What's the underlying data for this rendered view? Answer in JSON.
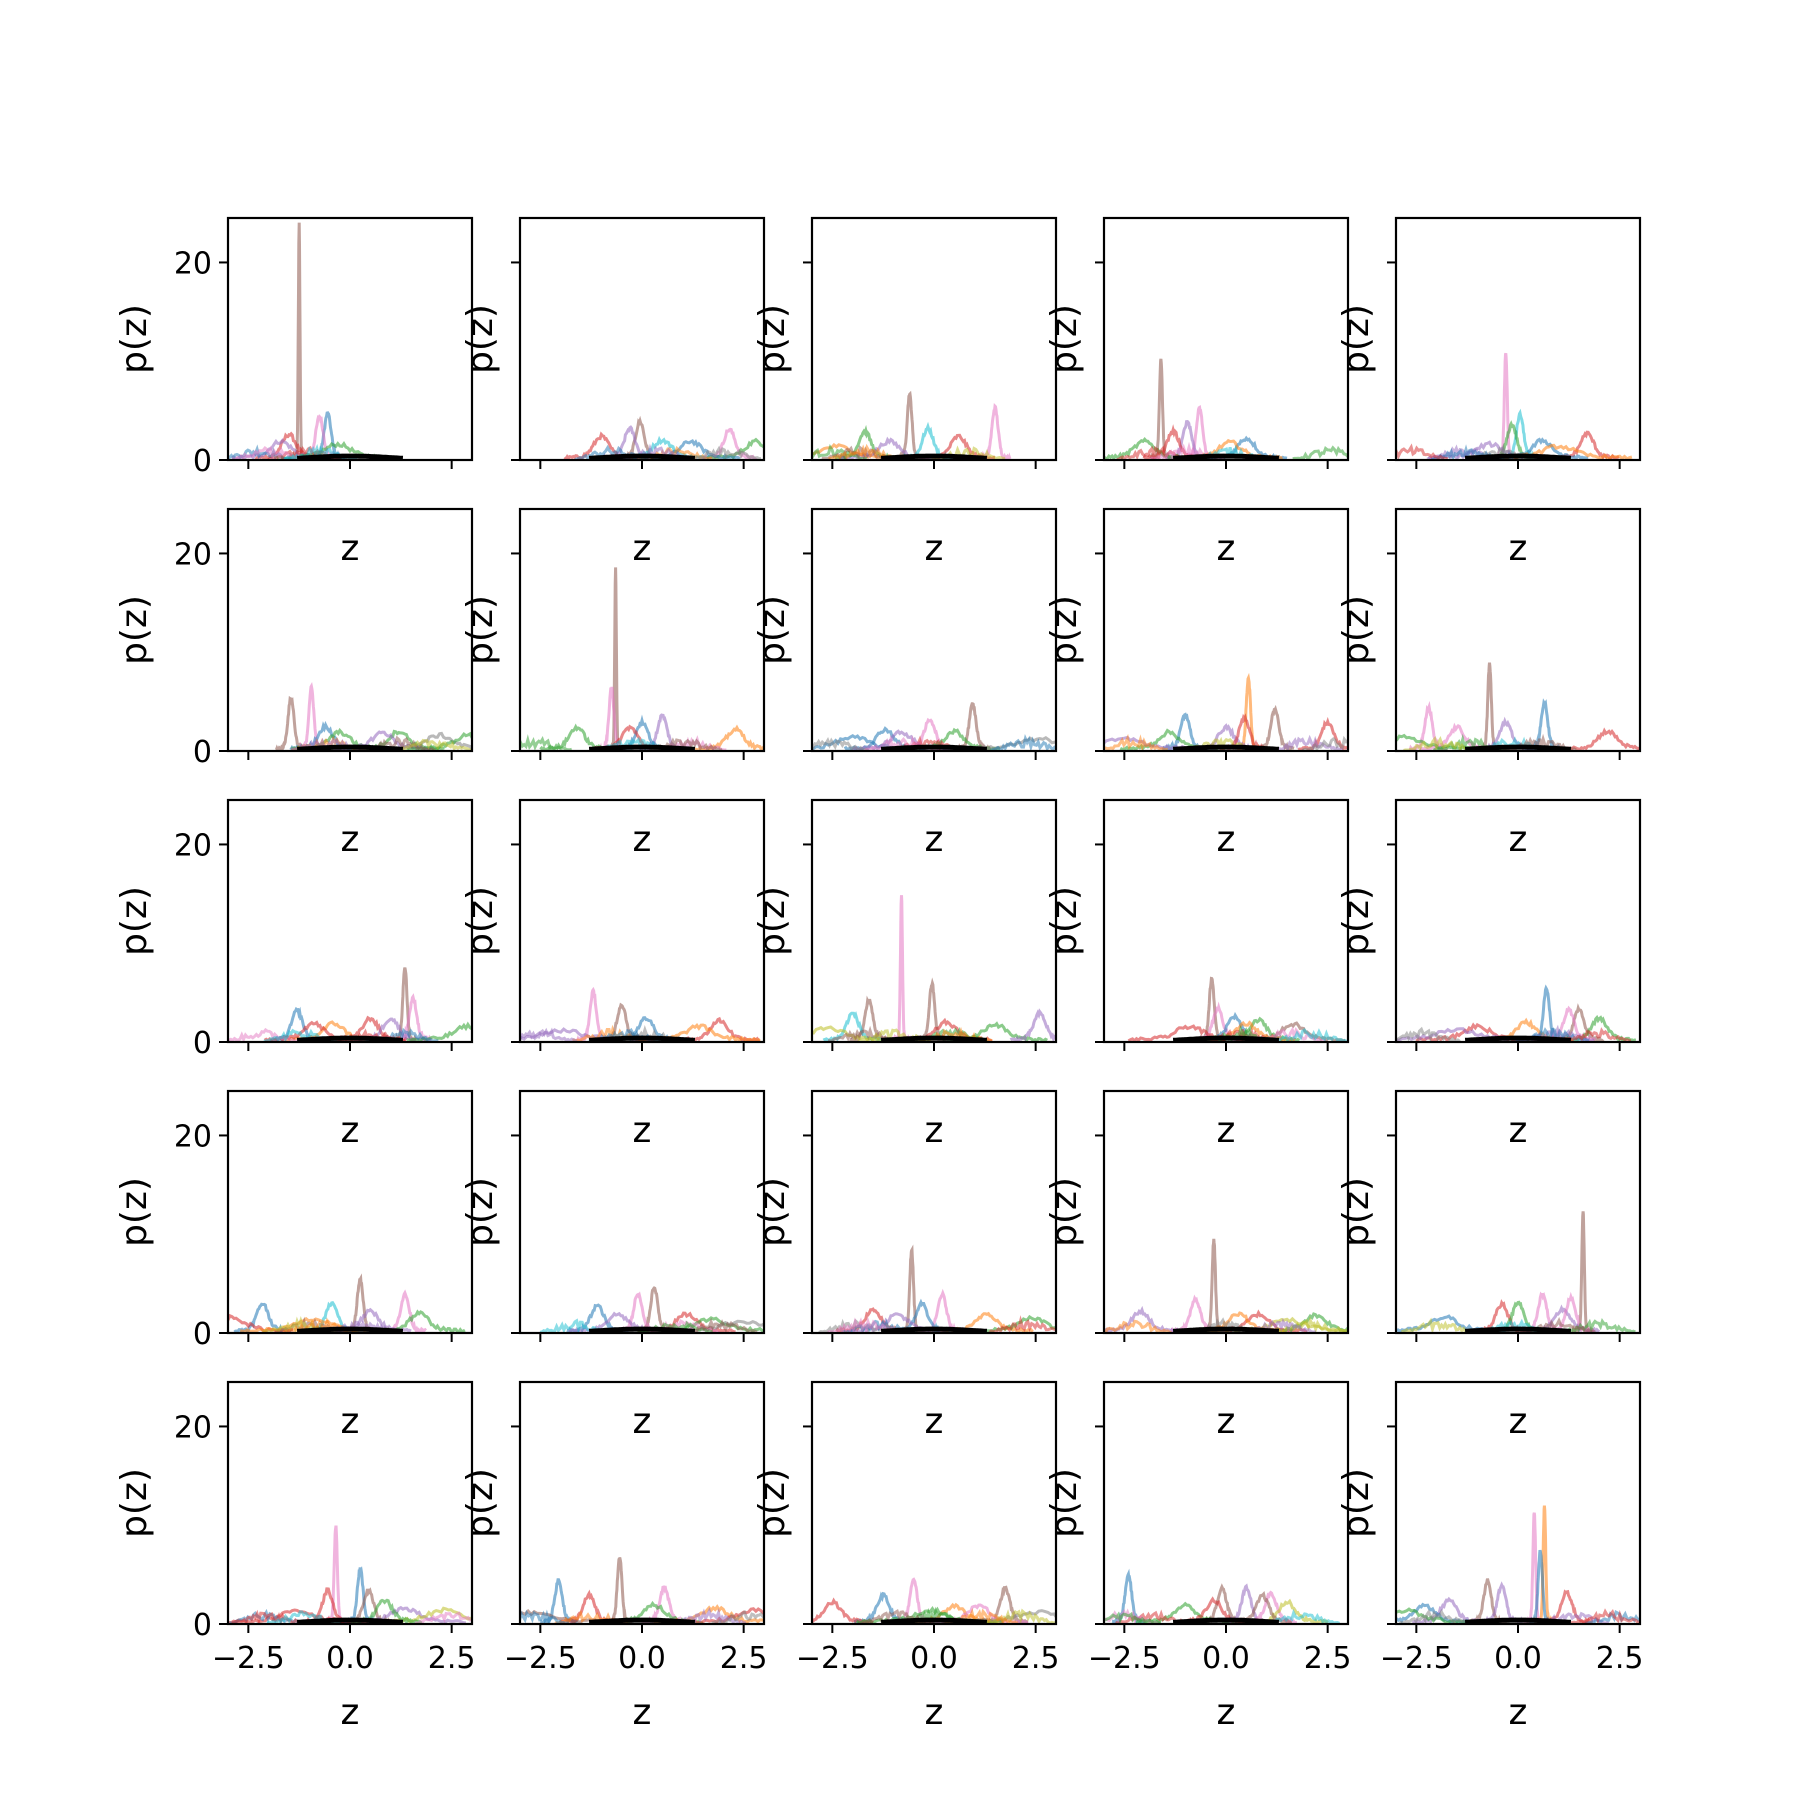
{
  "chart_data": {
    "type": "line",
    "layout": "5x5 grid of subplots, shared axes",
    "x_label": "z",
    "y_label": "p(z)",
    "xlim": [
      -3.0,
      3.0
    ],
    "ylim": [
      0,
      24.5
    ],
    "x_ticks": [
      -2.5,
      0.0,
      2.5
    ],
    "x_tick_labels": [
      "−2.5",
      "0.0",
      "2.5"
    ],
    "y_ticks": [
      0,
      20
    ],
    "y_tick_labels": [
      "0",
      "20"
    ],
    "grid": false,
    "legend": "none",
    "series_colors": [
      "#1f77b4",
      "#ff7f0e",
      "#2ca02c",
      "#d62728",
      "#9467bd",
      "#8c564b",
      "#e377c2",
      "#7f7f7f",
      "#bcbd22",
      "#17becf"
    ],
    "reference_curve": {
      "color": "#000000",
      "shape": "standard normal density",
      "mean": 0.0,
      "sd": 1.0
    },
    "panels": [
      {
        "row": 0,
        "col": 0,
        "peaks": [
          [
            -1.25,
            23.5,
            5
          ],
          [
            -0.55,
            4.3,
            0
          ],
          [
            -0.75,
            4,
            6
          ],
          [
            -1.5,
            2.2,
            3
          ],
          [
            -1.7,
            1.5,
            4
          ],
          [
            -0.3,
            1.2,
            2
          ]
        ]
      },
      {
        "row": 0,
        "col": 1,
        "peaks": [
          [
            -0.05,
            3.5,
            5
          ],
          [
            -0.3,
            2.8,
            4
          ],
          [
            -1.0,
            2.0,
            3
          ],
          [
            0.5,
            1.6,
            9
          ],
          [
            2.15,
            2.7,
            6
          ],
          [
            2.8,
            1.5,
            2
          ],
          [
            1.2,
            1.5,
            0
          ]
        ]
      },
      {
        "row": 0,
        "col": 2,
        "peaks": [
          [
            -0.6,
            6.2,
            5
          ],
          [
            1.5,
            4.9,
            6
          ],
          [
            -1.7,
            2.5,
            2
          ],
          [
            -0.15,
            2.8,
            9
          ],
          [
            0.6,
            2.0,
            3
          ],
          [
            -2.4,
            1.0,
            1
          ],
          [
            -1.1,
            1.5,
            4
          ]
        ]
      },
      {
        "row": 0,
        "col": 3,
        "peaks": [
          [
            -1.6,
            9.8,
            5
          ],
          [
            -0.65,
            4.8,
            6
          ],
          [
            -0.95,
            3.5,
            4
          ],
          [
            -1.3,
            2.5,
            3
          ],
          [
            0.5,
            1.8,
            0
          ],
          [
            -2.0,
            1.5,
            2
          ],
          [
            0.1,
            1.4,
            1
          ]
        ]
      },
      {
        "row": 0,
        "col": 4,
        "peaks": [
          [
            -0.3,
            10.5,
            6
          ],
          [
            0.05,
            4.2,
            9
          ],
          [
            -0.15,
            3.2,
            2
          ],
          [
            1.7,
            2.3,
            3
          ],
          [
            0.6,
            1.6,
            0
          ],
          [
            -0.7,
            1.2,
            4
          ],
          [
            1.0,
            1.0,
            1
          ]
        ]
      },
      {
        "row": 1,
        "col": 0,
        "peaks": [
          [
            -1.45,
            5.0,
            5
          ],
          [
            -0.95,
            6.0,
            6
          ],
          [
            -0.6,
            2.1,
            0
          ],
          [
            -0.25,
            1.5,
            2
          ],
          [
            1.2,
            1.6,
            2
          ],
          [
            2.2,
            1.2,
            7
          ],
          [
            0.8,
            1.5,
            4
          ],
          [
            2.9,
            1.2,
            2
          ]
        ]
      },
      {
        "row": 1,
        "col": 1,
        "peaks": [
          [
            -0.65,
            18.0,
            5
          ],
          [
            -0.75,
            6.0,
            6
          ],
          [
            -1.6,
            2.0,
            2
          ],
          [
            0.5,
            3.2,
            4
          ],
          [
            0.0,
            2.5,
            0
          ],
          [
            2.3,
            1.8,
            1
          ],
          [
            -0.3,
            2.0,
            3
          ]
        ]
      },
      {
        "row": 1,
        "col": 2,
        "peaks": [
          [
            0.95,
            4.3,
            5
          ],
          [
            -0.1,
            2.8,
            6
          ],
          [
            -1.2,
            1.8,
            0
          ],
          [
            0.5,
            1.6,
            2
          ],
          [
            -0.8,
            1.5,
            4
          ],
          [
            2.6,
            0.8,
            7
          ],
          [
            -2.0,
            1.0,
            0
          ]
        ]
      },
      {
        "row": 1,
        "col": 3,
        "peaks": [
          [
            0.55,
            7.0,
            1
          ],
          [
            1.2,
            3.8,
            5
          ],
          [
            -1.0,
            3.3,
            0
          ],
          [
            2.5,
            2.5,
            3
          ],
          [
            0.0,
            2.0,
            4
          ],
          [
            -1.4,
            1.5,
            2
          ],
          [
            -2.5,
            0.8,
            4
          ],
          [
            0.45,
            3.0,
            3
          ]
        ]
      },
      {
        "row": 1,
        "col": 4,
        "peaks": [
          [
            -0.7,
            8.5,
            5
          ],
          [
            0.65,
            4.5,
            0
          ],
          [
            -2.2,
            4.0,
            6
          ],
          [
            -0.3,
            2.5,
            4
          ],
          [
            2.2,
            1.6,
            3
          ],
          [
            -1.5,
            2.0,
            6
          ],
          [
            -2.8,
            1.0,
            2
          ]
        ]
      },
      {
        "row": 2,
        "col": 0,
        "peaks": [
          [
            1.35,
            7.2,
            5
          ],
          [
            1.55,
            4.0,
            6
          ],
          [
            -1.3,
            2.8,
            0
          ],
          [
            0.5,
            2.0,
            3
          ],
          [
            1.0,
            2.0,
            4
          ],
          [
            2.9,
            1.2,
            2
          ],
          [
            -0.4,
            1.5,
            1
          ],
          [
            -0.9,
            1.5,
            3
          ]
        ]
      },
      {
        "row": 2,
        "col": 1,
        "peaks": [
          [
            -1.2,
            4.7,
            6
          ],
          [
            -0.5,
            3.4,
            5
          ],
          [
            0.1,
            2.0,
            0
          ],
          [
            1.9,
            1.8,
            3
          ],
          [
            1.4,
            1.2,
            1
          ],
          [
            -2.0,
            0.8,
            4
          ]
        ]
      },
      {
        "row": 2,
        "col": 2,
        "peaks": [
          [
            -0.8,
            14.5,
            6
          ],
          [
            -0.05,
            5.5,
            5
          ],
          [
            -1.6,
            3.8,
            5
          ],
          [
            -2.0,
            2.5,
            9
          ],
          [
            0.3,
            1.6,
            3
          ],
          [
            1.5,
            1.4,
            2
          ],
          [
            2.6,
            2.5,
            4
          ],
          [
            -2.6,
            1.0,
            8
          ]
        ]
      },
      {
        "row": 2,
        "col": 3,
        "peaks": [
          [
            -0.35,
            6.0,
            5
          ],
          [
            -0.2,
            3.0,
            6
          ],
          [
            0.2,
            2.2,
            0
          ],
          [
            0.8,
            1.8,
            2
          ],
          [
            1.65,
            1.4,
            5
          ],
          [
            0.5,
            1.5,
            1
          ],
          [
            -0.9,
            1.2,
            3
          ]
        ]
      },
      {
        "row": 2,
        "col": 4,
        "peaks": [
          [
            0.7,
            5.0,
            0
          ],
          [
            1.5,
            3.0,
            5
          ],
          [
            1.25,
            2.8,
            6
          ],
          [
            2.0,
            2.0,
            2
          ],
          [
            0.2,
            1.6,
            1
          ],
          [
            -1.0,
            1.2,
            3
          ],
          [
            -1.5,
            0.8,
            4
          ]
        ]
      },
      {
        "row": 3,
        "col": 0,
        "peaks": [
          [
            0.25,
            5.0,
            5
          ],
          [
            -2.15,
            2.6,
            0
          ],
          [
            1.35,
            3.5,
            6
          ],
          [
            -0.45,
            2.6,
            9
          ],
          [
            0.5,
            1.8,
            4
          ],
          [
            1.7,
            1.6,
            2
          ],
          [
            -2.9,
            1.2,
            3
          ],
          [
            -0.9,
            1.0,
            1
          ]
        ]
      },
      {
        "row": 3,
        "col": 1,
        "peaks": [
          [
            0.3,
            4.3,
            5
          ],
          [
            -0.1,
            3.5,
            6
          ],
          [
            -1.1,
            2.4,
            0
          ],
          [
            -0.6,
            1.5,
            4
          ],
          [
            1.1,
            1.5,
            3
          ],
          [
            1.7,
            1.0,
            2
          ],
          [
            2.5,
            0.8,
            7
          ]
        ]
      },
      {
        "row": 3,
        "col": 2,
        "peaks": [
          [
            -0.55,
            8.0,
            5
          ],
          [
            0.2,
            3.5,
            6
          ],
          [
            -1.5,
            2.0,
            3
          ],
          [
            -0.3,
            2.6,
            0
          ],
          [
            1.3,
            1.6,
            1
          ],
          [
            2.4,
            1.2,
            2
          ],
          [
            -0.9,
            1.5,
            4
          ]
        ]
      },
      {
        "row": 3,
        "col": 3,
        "peaks": [
          [
            -0.3,
            9.0,
            5
          ],
          [
            -0.75,
            3.0,
            6
          ],
          [
            -2.1,
            1.8,
            4
          ],
          [
            0.8,
            1.5,
            3
          ],
          [
            2.2,
            1.4,
            2
          ],
          [
            0.3,
            1.6,
            1
          ],
          [
            1.5,
            0.9,
            8
          ]
        ]
      },
      {
        "row": 3,
        "col": 4,
        "peaks": [
          [
            1.6,
            12.0,
            5
          ],
          [
            0.6,
            3.5,
            6
          ],
          [
            -0.4,
            2.5,
            3
          ],
          [
            0.0,
            2.8,
            2
          ],
          [
            1.1,
            2.0,
            4
          ],
          [
            -1.8,
            1.2,
            0
          ],
          [
            1.3,
            3.2,
            6
          ]
        ]
      },
      {
        "row": 4,
        "col": 0,
        "peaks": [
          [
            -0.35,
            9.5,
            6
          ],
          [
            0.25,
            5.2,
            0
          ],
          [
            -0.55,
            3.0,
            3
          ],
          [
            0.45,
            3.0,
            5
          ],
          [
            1.35,
            1.2,
            4
          ],
          [
            2.3,
            1.0,
            8
          ],
          [
            -1.3,
            1.0,
            3
          ],
          [
            0.85,
            2.0,
            2
          ]
        ]
      },
      {
        "row": 4,
        "col": 1,
        "peaks": [
          [
            -0.55,
            6.3,
            5
          ],
          [
            -2.05,
            4.0,
            0
          ],
          [
            0.55,
            3.3,
            6
          ],
          [
            -1.3,
            2.5,
            3
          ],
          [
            0.3,
            1.5,
            2
          ],
          [
            1.8,
            1.2,
            1
          ],
          [
            2.8,
            1.0,
            3
          ],
          [
            -2.8,
            0.8,
            5
          ]
        ]
      },
      {
        "row": 4,
        "col": 2,
        "peaks": [
          [
            -0.5,
            4.0,
            6
          ],
          [
            1.75,
            3.2,
            5
          ],
          [
            -1.25,
            2.5,
            0
          ],
          [
            -2.5,
            1.8,
            3
          ],
          [
            0.5,
            1.5,
            1
          ],
          [
            1.1,
            1.5,
            6
          ],
          [
            -0.1,
            1.0,
            2
          ],
          [
            2.5,
            0.8,
            7
          ]
        ]
      },
      {
        "row": 4,
        "col": 3,
        "peaks": [
          [
            -2.4,
            4.5,
            0
          ],
          [
            -0.1,
            3.2,
            5
          ],
          [
            0.5,
            3.3,
            4
          ],
          [
            1.1,
            2.8,
            6
          ],
          [
            1.5,
            1.8,
            8
          ],
          [
            0.9,
            2.5,
            5
          ],
          [
            -1.0,
            1.5,
            2
          ],
          [
            -0.3,
            2.0,
            3
          ]
        ]
      },
      {
        "row": 4,
        "col": 4,
        "peaks": [
          [
            0.65,
            11.5,
            1
          ],
          [
            0.4,
            11.0,
            6
          ],
          [
            -0.75,
            4.0,
            5
          ],
          [
            -0.4,
            3.5,
            4
          ],
          [
            1.2,
            2.8,
            3
          ],
          [
            -1.7,
            2.0,
            4
          ],
          [
            -2.3,
            1.5,
            0
          ],
          [
            -2.8,
            1.0,
            2
          ],
          [
            0.55,
            7.0,
            0
          ]
        ]
      }
    ]
  }
}
